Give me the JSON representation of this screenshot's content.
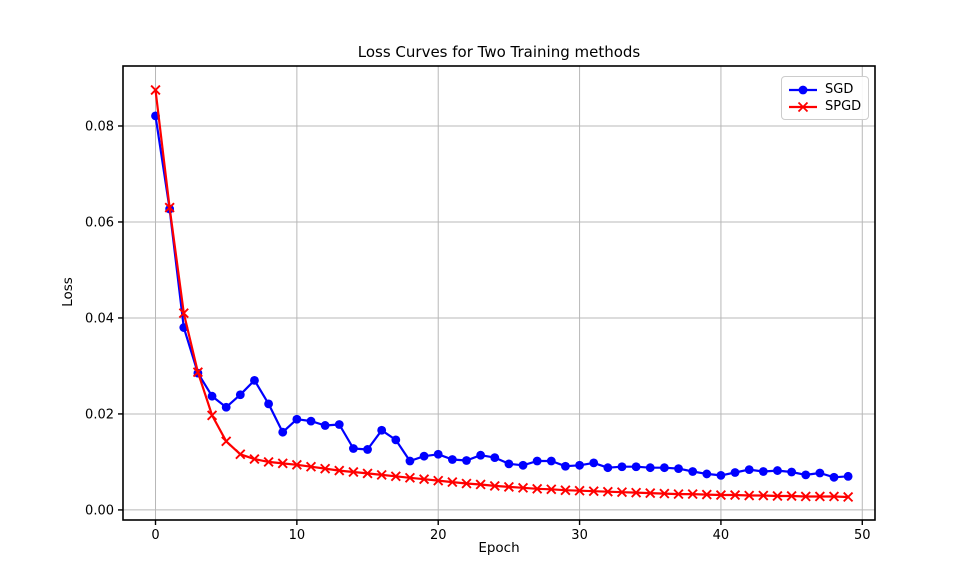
{
  "chart_data": {
    "type": "line",
    "title": "Loss Curves for Two Training methods",
    "xlabel": "Epoch",
    "ylabel": "Loss",
    "x": [
      0,
      1,
      2,
      3,
      4,
      5,
      6,
      7,
      8,
      9,
      10,
      11,
      12,
      13,
      14,
      15,
      16,
      17,
      18,
      19,
      20,
      21,
      22,
      23,
      24,
      25,
      26,
      27,
      28,
      29,
      30,
      31,
      32,
      33,
      34,
      35,
      36,
      37,
      38,
      39,
      40,
      41,
      42,
      43,
      44,
      45,
      46,
      47,
      48,
      49
    ],
    "series": [
      {
        "name": "SGD",
        "color": "#0000ff",
        "marker": "circle",
        "values": [
          0.0821,
          0.0627,
          0.038,
          0.0285,
          0.0237,
          0.0214,
          0.024,
          0.027,
          0.0221,
          0.0162,
          0.0189,
          0.0185,
          0.0176,
          0.0178,
          0.0128,
          0.0126,
          0.0166,
          0.0146,
          0.0102,
          0.0112,
          0.0116,
          0.0105,
          0.0103,
          0.0114,
          0.0109,
          0.0096,
          0.0093,
          0.0102,
          0.0102,
          0.0091,
          0.0093,
          0.0098,
          0.0088,
          0.009,
          0.009,
          0.0088,
          0.0088,
          0.0086,
          0.008,
          0.0075,
          0.0072,
          0.0078,
          0.0084,
          0.008,
          0.0082,
          0.0079,
          0.0073,
          0.0077,
          0.0068,
          0.007
        ]
      },
      {
        "name": "SPGD",
        "color": "#ff0000",
        "marker": "x",
        "values": [
          0.0875,
          0.063,
          0.041,
          0.0287,
          0.0197,
          0.0143,
          0.0116,
          0.0106,
          0.01,
          0.0097,
          0.0094,
          0.009,
          0.0086,
          0.0082,
          0.0079,
          0.0076,
          0.0073,
          0.007,
          0.0067,
          0.0064,
          0.0061,
          0.0058,
          0.0055,
          0.0053,
          0.005,
          0.0048,
          0.0046,
          0.0044,
          0.0043,
          0.0041,
          0.004,
          0.0039,
          0.0038,
          0.0037,
          0.0036,
          0.0035,
          0.0034,
          0.0033,
          0.0033,
          0.0032,
          0.0031,
          0.0031,
          0.003,
          0.003,
          0.0029,
          0.0029,
          0.0028,
          0.0028,
          0.0028,
          0.0027
        ]
      }
    ],
    "xlim": [
      -2.3,
      50.9
    ],
    "ylim": [
      -0.0021,
      0.0925
    ],
    "xticks": [
      0,
      10,
      20,
      30,
      40,
      50
    ],
    "xtick_labels": [
      "0",
      "10",
      "20",
      "30",
      "40",
      "50"
    ],
    "yticks": [
      0.0,
      0.02,
      0.04,
      0.06,
      0.08
    ],
    "ytick_labels": [
      "0.00",
      "0.02",
      "0.04",
      "0.06",
      "0.08"
    ],
    "grid": true,
    "grid_color": "#b8b8b8",
    "spine_color": "#000000",
    "legend_position": "upper right"
  }
}
